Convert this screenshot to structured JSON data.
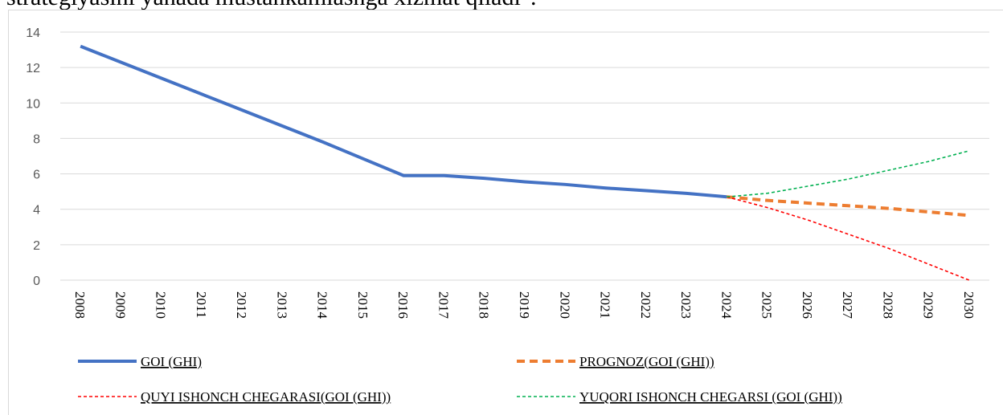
{
  "caption": "strategiyasini yanada mustahkamlashga xizmat qiladi\".",
  "chart_data": {
    "type": "line",
    "categories": [
      "2008",
      "2009",
      "2010",
      "2011",
      "2012",
      "2013",
      "2014",
      "2015",
      "2016",
      "2017",
      "2018",
      "2019",
      "2020",
      "2021",
      "2022",
      "2023",
      "2024",
      "2025",
      "2026",
      "2027",
      "2028",
      "2029",
      "2030"
    ],
    "series": [
      {
        "name": "GOI (GHI)",
        "color": "#4472c4",
        "values": [
          13.2,
          12.3,
          11.4,
          10.5,
          9.6,
          8.7,
          7.8,
          6.85,
          5.9,
          5.9,
          5.75,
          5.55,
          5.4,
          5.2,
          5.05,
          4.9,
          4.7,
          null,
          null,
          null,
          null,
          null,
          null
        ]
      },
      {
        "name": "PROGNOZ(GOI (GHI))",
        "color": "#ed7d31",
        "values": [
          null,
          null,
          null,
          null,
          null,
          null,
          null,
          null,
          null,
          null,
          null,
          null,
          null,
          null,
          null,
          null,
          4.7,
          4.5,
          4.35,
          4.2,
          4.05,
          3.85,
          3.65
        ]
      },
      {
        "name": "QUYI ISHONCH CHEGARASI(GOI (GHI))",
        "color": "#ff0000",
        "values": [
          null,
          null,
          null,
          null,
          null,
          null,
          null,
          null,
          null,
          null,
          null,
          null,
          null,
          null,
          null,
          null,
          4.7,
          4.1,
          3.4,
          2.6,
          1.8,
          0.9,
          0
        ]
      },
      {
        "name": "YUQORI ISHONCH CHEGARSI (GOI (GHI))",
        "color": "#00b050",
        "values": [
          null,
          null,
          null,
          null,
          null,
          null,
          null,
          null,
          null,
          null,
          null,
          null,
          null,
          null,
          null,
          null,
          4.7,
          4.9,
          5.3,
          5.7,
          6.2,
          6.7,
          7.3
        ]
      }
    ],
    "ylim": [
      0,
      14
    ],
    "yticks": [
      0,
      2,
      4,
      6,
      8,
      10,
      12,
      14
    ],
    "grid": true
  }
}
